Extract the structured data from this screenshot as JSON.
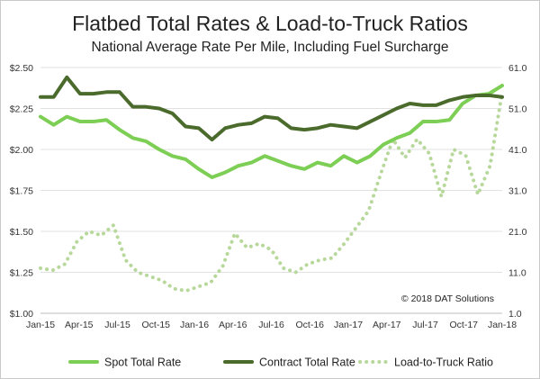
{
  "chart_data": {
    "type": "line",
    "title": "Flatbed Total Rates & Load-to-Truck Ratios",
    "subtitle": "National Average Rate Per Mile, Including Fuel Surcharge",
    "annotation": "© 2018 DAT Solutions",
    "x_tick_labels": [
      "Jan-15",
      "Apr-15",
      "Jul-15",
      "Oct-15",
      "Jan-16",
      "Apr-16",
      "Jul-16",
      "Oct-16",
      "Jan-17",
      "Apr-17",
      "Jul-17",
      "Oct-17",
      "Jan-18"
    ],
    "y_left": {
      "tick_labels": [
        "$1.00",
        "$1.25",
        "$1.50",
        "$1.75",
        "$2.00",
        "$2.25",
        "$2.50"
      ],
      "range": [
        1.0,
        2.5
      ]
    },
    "y_right": {
      "tick_labels": [
        "1.0",
        "11.0",
        "21.0",
        "31.0",
        "41.0",
        "51.0",
        "61.0"
      ],
      "range": [
        1.0,
        61.0
      ]
    },
    "gridlines": "horizontal",
    "legend_position": "bottom",
    "series": [
      {
        "name": "Spot Total Rate",
        "axis": "left",
        "style": "solid",
        "color": "#7ccf54",
        "values": [
          2.2,
          2.15,
          2.2,
          2.17,
          2.17,
          2.18,
          2.12,
          2.07,
          2.05,
          2.0,
          1.96,
          1.94,
          1.88,
          1.83,
          1.86,
          1.9,
          1.92,
          1.96,
          1.93,
          1.9,
          1.88,
          1.92,
          1.9,
          1.96,
          1.92,
          1.96,
          2.03,
          2.07,
          2.1,
          2.17,
          2.17,
          2.18,
          2.28,
          2.33,
          2.34,
          2.39
        ]
      },
      {
        "name": "Contract Total Rate",
        "axis": "left",
        "style": "solid",
        "color": "#4a6b2c",
        "values": [
          2.32,
          2.32,
          2.44,
          2.34,
          2.34,
          2.35,
          2.35,
          2.26,
          2.26,
          2.25,
          2.22,
          2.14,
          2.13,
          2.06,
          2.13,
          2.15,
          2.16,
          2.2,
          2.19,
          2.13,
          2.12,
          2.13,
          2.15,
          2.14,
          2.13,
          2.17,
          2.21,
          2.25,
          2.28,
          2.27,
          2.27,
          2.3,
          2.32,
          2.33,
          2.33,
          2.32
        ]
      },
      {
        "name": "Load-to-Truck Ratio",
        "axis": "right",
        "style": "dotted",
        "color": "#b8d89b",
        "values": [
          12.0,
          11.5,
          13.0,
          18.5,
          21.0,
          20.0,
          22.5,
          14.0,
          11.0,
          10.0,
          9.0,
          7.0,
          6.5,
          7.5,
          8.5,
          12.5,
          20.5,
          17.0,
          18.0,
          16.5,
          12.0,
          11.0,
          13.0,
          14.0,
          14.5,
          18.0,
          22.0,
          26.0,
          35.0,
          43.5,
          39.0,
          43.5,
          40.0,
          29.5,
          41.0,
          39.5,
          30.0,
          37.0,
          55.0
        ]
      }
    ]
  }
}
